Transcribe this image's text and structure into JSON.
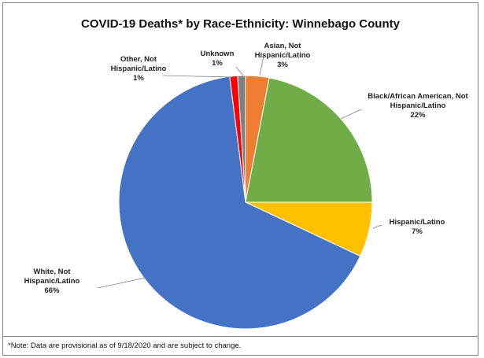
{
  "chart_data": {
    "type": "pie",
    "title": "COVID-19 Deaths* by Race-Ethnicity: Winnebago County",
    "slices": [
      {
        "label": [
          "Asian, Not",
          "Hispanic/Latino"
        ],
        "pct_label": "3%",
        "value": 3,
        "color": "#ED7D31"
      },
      {
        "label": [
          "Black/African American, Not",
          "Hispanic/Latino"
        ],
        "pct_label": "22%",
        "value": 22,
        "color": "#70AD47"
      },
      {
        "label": [
          "Hispanic/Latino"
        ],
        "pct_label": "7%",
        "value": 7,
        "color": "#FFC000"
      },
      {
        "label": [
          "White, Not",
          "Hispanic/Latino"
        ],
        "pct_label": "66%",
        "value": 66,
        "color": "#4472C4"
      },
      {
        "label": [
          "Other, Not",
          "Hispanic/Latino"
        ],
        "pct_label": "1%",
        "value": 1,
        "color": "#FF0000"
      },
      {
        "label": [
          "Unknown"
        ],
        "pct_label": "1%",
        "value": 1,
        "color": "#7F7F7F"
      }
    ]
  },
  "footnote": "*Note: Data are provisional as of 9/18/2020 and are subject to change."
}
